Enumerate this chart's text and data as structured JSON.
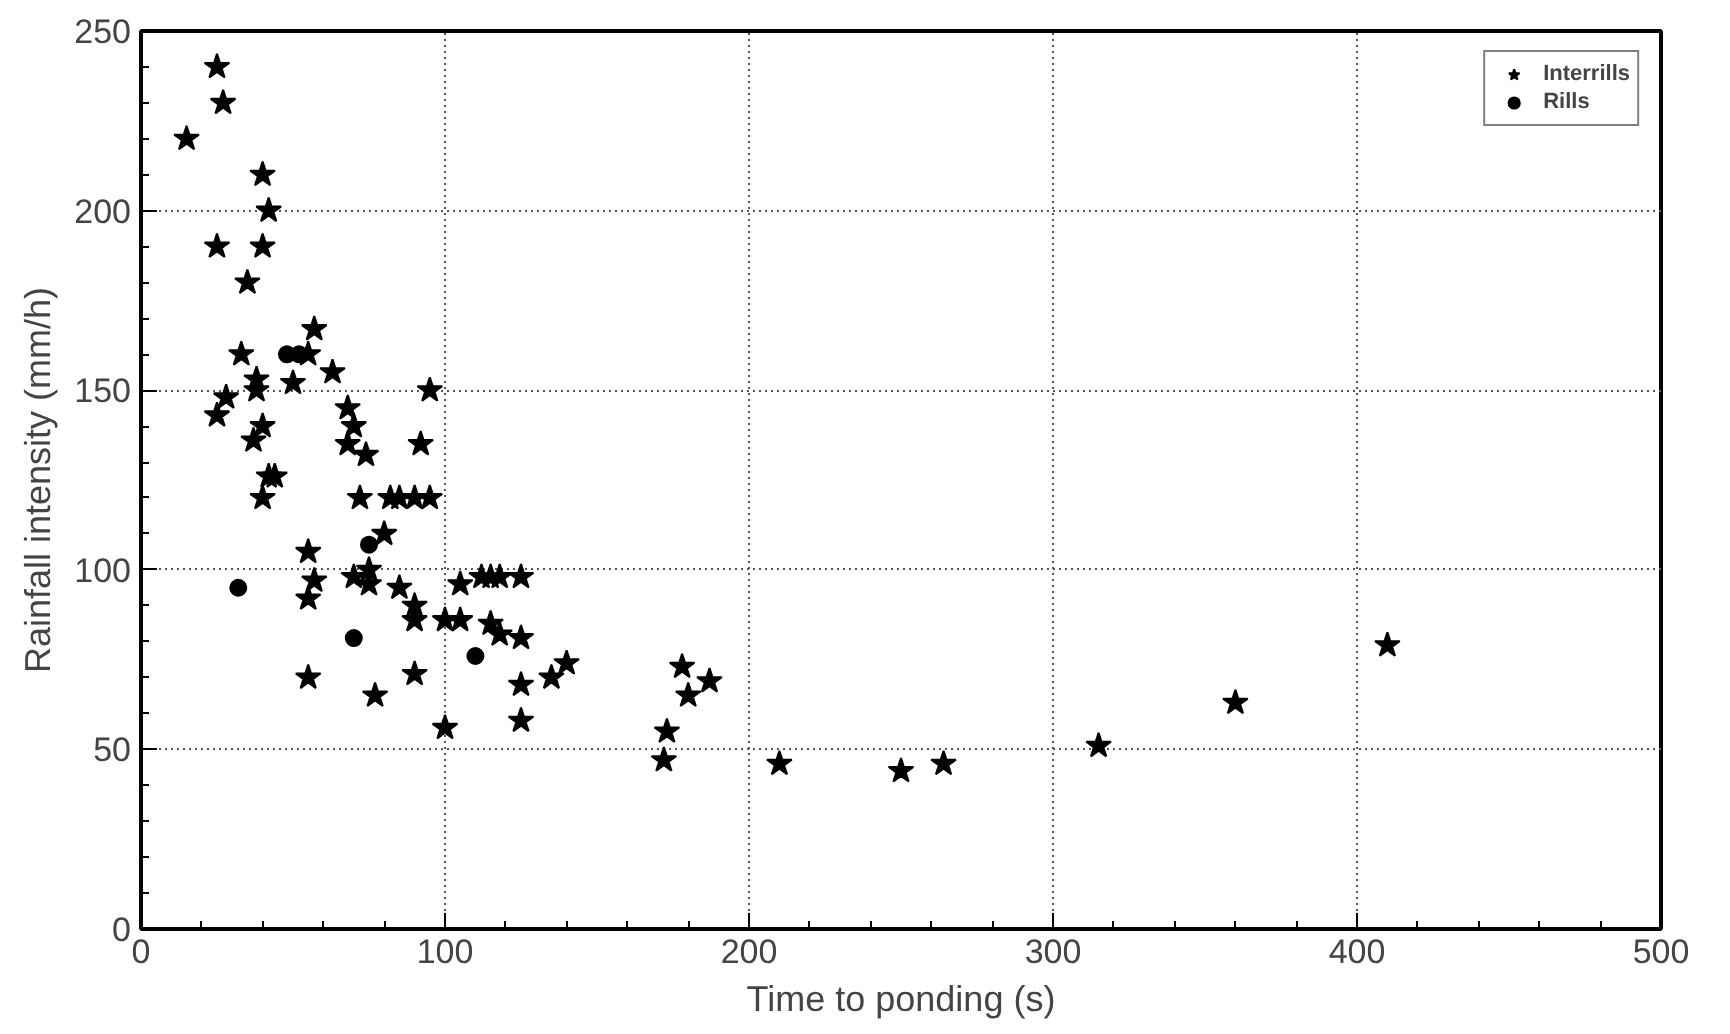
{
  "chart_data": {
    "type": "scatter",
    "xlabel": "Time to ponding (s)",
    "ylabel": "Rainfall intensity (mm/h)",
    "xlim": [
      0,
      500
    ],
    "ylim": [
      0,
      250
    ],
    "xticks": [
      0,
      100,
      200,
      300,
      400,
      500
    ],
    "yticks": [
      0,
      50,
      100,
      150,
      200,
      250
    ],
    "grid": true,
    "legend": "top right",
    "series": [
      {
        "name": "Interrills",
        "color": "#000000",
        "marker": "star",
        "x": [
          15,
          25,
          27,
          25,
          40,
          42,
          40,
          35,
          33,
          25,
          28,
          38,
          38,
          40,
          37,
          42,
          40,
          44,
          57,
          50,
          55,
          63,
          68,
          70,
          68,
          74,
          72,
          82,
          85,
          80,
          95,
          92,
          90,
          95,
          55,
          57,
          55,
          70,
          75,
          75,
          85,
          90,
          90,
          100,
          105,
          105,
          112,
          115,
          118,
          125,
          115,
          118,
          125,
          125,
          135,
          140,
          125,
          55,
          90,
          77,
          100,
          173,
          172,
          178,
          180,
          187,
          210,
          250,
          264,
          315,
          360,
          410
        ],
        "values": [
          220,
          240,
          230,
          190,
          210,
          200,
          190,
          180,
          160,
          143,
          148,
          153,
          150,
          140,
          136,
          126,
          120,
          126,
          167,
          152,
          160,
          155,
          145,
          140,
          135,
          132,
          120,
          120,
          120,
          110,
          150,
          135,
          120,
          120,
          105,
          97,
          92,
          98,
          100,
          96,
          95,
          90,
          86,
          86,
          86,
          96,
          98,
          98,
          98,
          98,
          85,
          82,
          81,
          68,
          70,
          74,
          58,
          70,
          71,
          65,
          56,
          55,
          47,
          73,
          65,
          69,
          46,
          44,
          46,
          51,
          63,
          79
        ]
      },
      {
        "name": "Rills",
        "color": "#000000",
        "marker": "circle",
        "x": [
          32,
          48,
          52,
          75,
          70,
          110
        ],
        "values": [
          95,
          160,
          160,
          107,
          81,
          76
        ]
      }
    ]
  }
}
